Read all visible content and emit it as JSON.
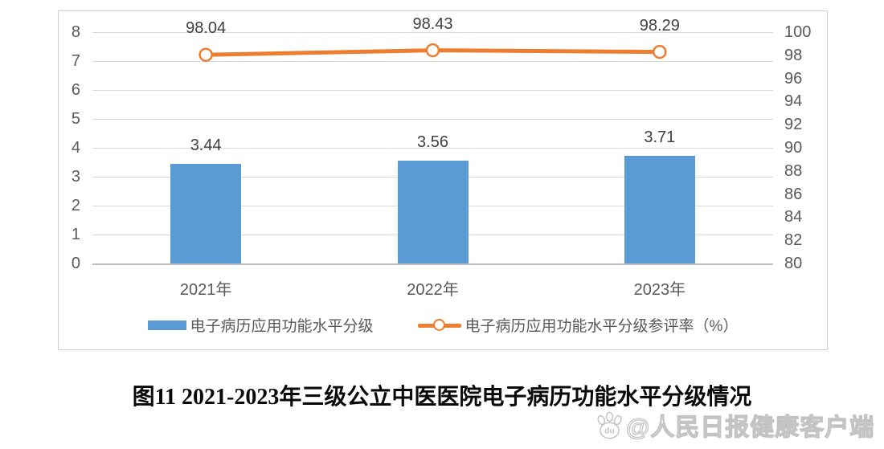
{
  "page": {
    "caption": "图11 2021-2023年三级公立中医医院电子病历功能水平分级情况",
    "watermark": {
      "text": "@人民日报健康客户端",
      "paw_label": "du"
    }
  },
  "chart_data": {
    "type": "bar",
    "subtype": "combo-bar-line-dual-axis",
    "categories": [
      "2021年",
      "2022年",
      "2023年"
    ],
    "series": [
      {
        "name": "电子病历应用功能水平分级",
        "type": "bar",
        "axis": "left",
        "values": [
          3.44,
          3.56,
          3.71
        ],
        "color": "#5b9bd5"
      },
      {
        "name": "电子病历应用功能水平分级参评率（%）",
        "type": "line",
        "axis": "right",
        "values": [
          98.04,
          98.43,
          98.29
        ],
        "color": "#ed7d31",
        "marker": "open-circle"
      }
    ],
    "left_axis": {
      "min": 0,
      "max": 8,
      "step": 1,
      "ticks": [
        0,
        1,
        2,
        3,
        4,
        5,
        6,
        7,
        8
      ]
    },
    "right_axis": {
      "min": 80,
      "max": 100,
      "step": 2,
      "ticks": [
        80,
        82,
        84,
        86,
        88,
        90,
        92,
        94,
        96,
        98,
        100
      ]
    },
    "grid": true,
    "legend_position": "bottom",
    "data_labels": true,
    "colors": {
      "bar": "#5b9bd5",
      "line": "#ed7d31",
      "grid": "#d9d9d9",
      "axis_line": "#bfbfbf",
      "tick_text": "#595959",
      "data_label_text": "#404040"
    }
  }
}
